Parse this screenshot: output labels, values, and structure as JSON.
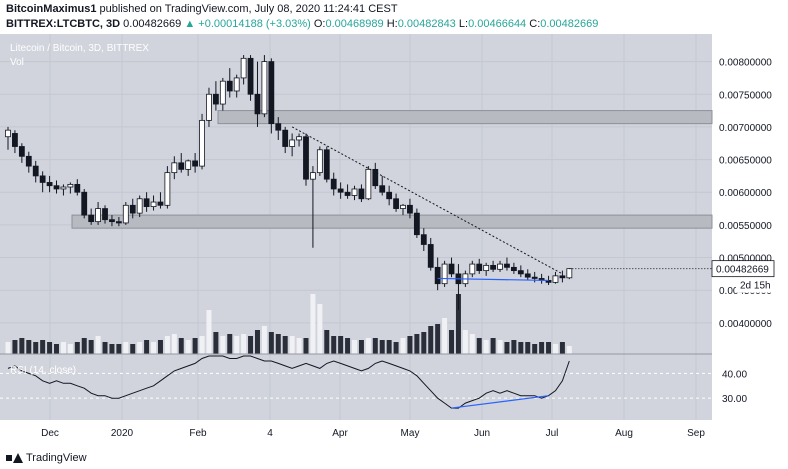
{
  "header": {
    "author": "BitcoinMaximus1",
    "published_text": "published on TradingView.com, July 08, 2020 11:24:41 CEST",
    "symbol": "BITTREX:LTCBTC, 3D",
    "last": "0.00482669",
    "change": "▲ +0.00014188 (+3.03%)",
    "o_label": "O:",
    "o": "0.00468989",
    "h_label": "H:",
    "h": "0.00482843",
    "l_label": "L:",
    "l": "0.00466644",
    "c_label": "C:",
    "c": "0.00482669"
  },
  "pane": {
    "title": "Litecoin / Bitcoin, 3D, BITTREX",
    "vol_label": "Vol",
    "rsi_label": "RSI (14, close)"
  },
  "price_axis": {
    "ticks": [
      "0.00800000",
      "0.00750000",
      "0.00700000",
      "0.00650000",
      "0.00600000",
      "0.00550000",
      "0.00500000",
      "0.00450000",
      "0.00400000"
    ],
    "last_label": "0.00482669",
    "countdown": "2d 15h"
  },
  "rsi_axis": {
    "ticks": [
      "40.00",
      "30.00"
    ]
  },
  "time_axis": {
    "ticks": [
      "Dec",
      "2020",
      "Feb",
      "4",
      "Apr",
      "May",
      "Jun",
      "Jul",
      "Aug",
      "Sep"
    ]
  },
  "footer": {
    "brand": "TradingView"
  },
  "colors": {
    "up": "#ffffff",
    "down": "#131722",
    "bg": "#d1d4dc",
    "trendline_blue": "#2962ff",
    "header_green": "#26a69a"
  },
  "chart_data": {
    "type": "candlestick",
    "price_ylim": [
      0.0036,
      0.0083
    ],
    "rsi_ylim": [
      22,
      47
    ],
    "candles": [
      {
        "o": 0.00685,
        "h": 0.007,
        "l": 0.00665,
        "c": 0.00695
      },
      {
        "o": 0.0069,
        "h": 0.00695,
        "l": 0.0066,
        "c": 0.0067
      },
      {
        "o": 0.0067,
        "h": 0.00675,
        "l": 0.00645,
        "c": 0.00655
      },
      {
        "o": 0.00655,
        "h": 0.00662,
        "l": 0.0063,
        "c": 0.0064
      },
      {
        "o": 0.0064,
        "h": 0.00648,
        "l": 0.00615,
        "c": 0.00625
      },
      {
        "o": 0.00625,
        "h": 0.00632,
        "l": 0.006,
        "c": 0.00615
      },
      {
        "o": 0.00615,
        "h": 0.00625,
        "l": 0.006,
        "c": 0.0061
      },
      {
        "o": 0.0061,
        "h": 0.00618,
        "l": 0.00598,
        "c": 0.00605
      },
      {
        "o": 0.00605,
        "h": 0.00612,
        "l": 0.00595,
        "c": 0.00608
      },
      {
        "o": 0.00608,
        "h": 0.00615,
        "l": 0.00598,
        "c": 0.00612
      },
      {
        "o": 0.00612,
        "h": 0.0062,
        "l": 0.00595,
        "c": 0.006
      },
      {
        "o": 0.006,
        "h": 0.00605,
        "l": 0.0056,
        "c": 0.00565
      },
      {
        "o": 0.00565,
        "h": 0.00575,
        "l": 0.0055,
        "c": 0.00555
      },
      {
        "o": 0.00555,
        "h": 0.00585,
        "l": 0.0055,
        "c": 0.00575
      },
      {
        "o": 0.00575,
        "h": 0.0058,
        "l": 0.00552,
        "c": 0.00558
      },
      {
        "o": 0.00558,
        "h": 0.00565,
        "l": 0.00548,
        "c": 0.00555
      },
      {
        "o": 0.00555,
        "h": 0.00562,
        "l": 0.00548,
        "c": 0.00553
      },
      {
        "o": 0.00553,
        "h": 0.00585,
        "l": 0.0055,
        "c": 0.0058
      },
      {
        "o": 0.0058,
        "h": 0.0059,
        "l": 0.0056,
        "c": 0.00568
      },
      {
        "o": 0.00568,
        "h": 0.00595,
        "l": 0.00562,
        "c": 0.0059
      },
      {
        "o": 0.0059,
        "h": 0.006,
        "l": 0.0057,
        "c": 0.00578
      },
      {
        "o": 0.00578,
        "h": 0.00595,
        "l": 0.00572,
        "c": 0.00585
      },
      {
        "o": 0.00585,
        "h": 0.006,
        "l": 0.00575,
        "c": 0.0058
      },
      {
        "o": 0.0058,
        "h": 0.0064,
        "l": 0.00575,
        "c": 0.0063
      },
      {
        "o": 0.0063,
        "h": 0.00655,
        "l": 0.0062,
        "c": 0.00645
      },
      {
        "o": 0.00645,
        "h": 0.0066,
        "l": 0.0063,
        "c": 0.00635
      },
      {
        "o": 0.00635,
        "h": 0.0065,
        "l": 0.00625,
        "c": 0.00648
      },
      {
        "o": 0.00648,
        "h": 0.0066,
        "l": 0.0063,
        "c": 0.0064
      },
      {
        "o": 0.0064,
        "h": 0.0072,
        "l": 0.00635,
        "c": 0.0071
      },
      {
        "o": 0.0071,
        "h": 0.0076,
        "l": 0.007,
        "c": 0.0075
      },
      {
        "o": 0.0075,
        "h": 0.0077,
        "l": 0.00725,
        "c": 0.00735
      },
      {
        "o": 0.00735,
        "h": 0.00775,
        "l": 0.00725,
        "c": 0.0077
      },
      {
        "o": 0.0077,
        "h": 0.0079,
        "l": 0.00745,
        "c": 0.00755
      },
      {
        "o": 0.00755,
        "h": 0.0078,
        "l": 0.00745,
        "c": 0.00775
      },
      {
        "o": 0.00775,
        "h": 0.0081,
        "l": 0.00765,
        "c": 0.00805
      },
      {
        "o": 0.00805,
        "h": 0.0081,
        "l": 0.0074,
        "c": 0.0075
      },
      {
        "o": 0.0075,
        "h": 0.008,
        "l": 0.007,
        "c": 0.0072
      },
      {
        "o": 0.0072,
        "h": 0.0081,
        "l": 0.00715,
        "c": 0.008
      },
      {
        "o": 0.008,
        "h": 0.00805,
        "l": 0.0069,
        "c": 0.00705
      },
      {
        "o": 0.00705,
        "h": 0.00715,
        "l": 0.0068,
        "c": 0.00695
      },
      {
        "o": 0.00695,
        "h": 0.007,
        "l": 0.0066,
        "c": 0.0067
      },
      {
        "o": 0.0067,
        "h": 0.0069,
        "l": 0.00655,
        "c": 0.0068
      },
      {
        "o": 0.0068,
        "h": 0.0069,
        "l": 0.0067,
        "c": 0.00685
      },
      {
        "o": 0.00685,
        "h": 0.0069,
        "l": 0.0061,
        "c": 0.0062
      },
      {
        "o": 0.0062,
        "h": 0.0064,
        "l": 0.00515,
        "c": 0.0063
      },
      {
        "o": 0.0063,
        "h": 0.0067,
        "l": 0.00625,
        "c": 0.00665
      },
      {
        "o": 0.00665,
        "h": 0.0067,
        "l": 0.00615,
        "c": 0.0062
      },
      {
        "o": 0.0062,
        "h": 0.0063,
        "l": 0.00595,
        "c": 0.00605
      },
      {
        "o": 0.00605,
        "h": 0.00615,
        "l": 0.0059,
        "c": 0.006
      },
      {
        "o": 0.006,
        "h": 0.00612,
        "l": 0.0059,
        "c": 0.00595
      },
      {
        "o": 0.00595,
        "h": 0.0061,
        "l": 0.00588,
        "c": 0.00605
      },
      {
        "o": 0.00605,
        "h": 0.00612,
        "l": 0.00585,
        "c": 0.0059
      },
      {
        "o": 0.0059,
        "h": 0.0064,
        "l": 0.00588,
        "c": 0.00635
      },
      {
        "o": 0.00635,
        "h": 0.00645,
        "l": 0.00605,
        "c": 0.0061
      },
      {
        "o": 0.0061,
        "h": 0.00625,
        "l": 0.00595,
        "c": 0.006
      },
      {
        "o": 0.006,
        "h": 0.0061,
        "l": 0.0058,
        "c": 0.0059
      },
      {
        "o": 0.0059,
        "h": 0.00598,
        "l": 0.0057,
        "c": 0.00575
      },
      {
        "o": 0.00575,
        "h": 0.00582,
        "l": 0.00565,
        "c": 0.0058
      },
      {
        "o": 0.0058,
        "h": 0.0059,
        "l": 0.0056,
        "c": 0.00568
      },
      {
        "o": 0.00568,
        "h": 0.00575,
        "l": 0.0053,
        "c": 0.00535
      },
      {
        "o": 0.00535,
        "h": 0.00545,
        "l": 0.0051,
        "c": 0.0052
      },
      {
        "o": 0.0052,
        "h": 0.0053,
        "l": 0.0048,
        "c": 0.00485
      },
      {
        "o": 0.00485,
        "h": 0.005,
        "l": 0.0045,
        "c": 0.0046
      },
      {
        "o": 0.0046,
        "h": 0.00495,
        "l": 0.00455,
        "c": 0.0049
      },
      {
        "o": 0.0049,
        "h": 0.005,
        "l": 0.0047,
        "c": 0.00475
      },
      {
        "o": 0.00475,
        "h": 0.0049,
        "l": 0.0042,
        "c": 0.0046
      },
      {
        "o": 0.0046,
        "h": 0.0048,
        "l": 0.00455,
        "c": 0.00475
      },
      {
        "o": 0.00475,
        "h": 0.00495,
        "l": 0.0047,
        "c": 0.0049
      },
      {
        "o": 0.0049,
        "h": 0.00498,
        "l": 0.00475,
        "c": 0.0048
      },
      {
        "o": 0.0048,
        "h": 0.00492,
        "l": 0.00472,
        "c": 0.00488
      },
      {
        "o": 0.00488,
        "h": 0.00495,
        "l": 0.00478,
        "c": 0.00482
      },
      {
        "o": 0.00482,
        "h": 0.00495,
        "l": 0.00478,
        "c": 0.0049
      },
      {
        "o": 0.0049,
        "h": 0.005,
        "l": 0.0048,
        "c": 0.00485
      },
      {
        "o": 0.00485,
        "h": 0.00492,
        "l": 0.00475,
        "c": 0.0048
      },
      {
        "o": 0.0048,
        "h": 0.00488,
        "l": 0.0047,
        "c": 0.00475
      },
      {
        "o": 0.00475,
        "h": 0.00482,
        "l": 0.00465,
        "c": 0.0047
      },
      {
        "o": 0.0047,
        "h": 0.00478,
        "l": 0.00462,
        "c": 0.00468
      },
      {
        "o": 0.00468,
        "h": 0.00475,
        "l": 0.0046,
        "c": 0.00465
      },
      {
        "o": 0.00465,
        "h": 0.00472,
        "l": 0.00458,
        "c": 0.00462
      },
      {
        "o": 0.00462,
        "h": 0.00478,
        "l": 0.0046,
        "c": 0.00472
      },
      {
        "o": 0.00472,
        "h": 0.0048,
        "l": 0.00462,
        "c": 0.00469
      },
      {
        "o": 0.00469,
        "h": 0.00483,
        "l": 0.00467,
        "c": 0.00483
      }
    ],
    "volume": [
      6,
      7,
      8,
      7,
      6,
      7,
      6,
      5,
      6,
      5,
      6,
      8,
      7,
      9,
      6,
      5,
      5,
      6,
      5,
      6,
      7,
      6,
      7,
      9,
      10,
      8,
      7,
      8,
      9,
      22,
      11,
      9,
      10,
      9,
      10,
      9,
      12,
      14,
      11,
      10,
      9,
      9,
      8,
      8,
      30,
      25,
      12,
      9,
      9,
      8,
      7,
      7,
      8,
      8,
      7,
      7,
      6,
      8,
      9,
      10,
      11,
      14,
      15,
      18,
      12,
      30,
      12,
      10,
      8,
      7,
      8,
      7,
      6,
      7,
      6,
      6,
      5,
      6,
      6,
      5,
      6,
      4
    ],
    "rsi": [
      42,
      43,
      41,
      40,
      39,
      37,
      36,
      37,
      36,
      36,
      35,
      34,
      32,
      31,
      31,
      30,
      30,
      31,
      32,
      33,
      34,
      35,
      37,
      39,
      41,
      42,
      43,
      44,
      46,
      47,
      47,
      47,
      46,
      46,
      47,
      47,
      46,
      45,
      45,
      44,
      43,
      42,
      43,
      44,
      43,
      42,
      44,
      45,
      44,
      43,
      42,
      41,
      42,
      44,
      45,
      44,
      43,
      42,
      41,
      39,
      36,
      33,
      30,
      28,
      26,
      26,
      28,
      29,
      30,
      32,
      33,
      32,
      33,
      32,
      31,
      31,
      31,
      30,
      31,
      33,
      37,
      45
    ],
    "support_zones": [
      {
        "from": 0.00705,
        "to": 0.00725
      },
      {
        "from": 0.00545,
        "to": 0.00565
      }
    ],
    "descending_trendline": {
      "from": {
        "index": 41,
        "price": 0.007
      },
      "to": {
        "index": 80,
        "price": 0.00475
      }
    },
    "price_support_line": {
      "from": {
        "index": 62,
        "price": 0.00468
      },
      "to": {
        "index": 78,
        "price": 0.00465
      }
    },
    "rsi_divergence_line": {
      "from": {
        "index": 64,
        "rsi": 26
      },
      "to": {
        "index": 78,
        "rsi": 31
      }
    }
  }
}
